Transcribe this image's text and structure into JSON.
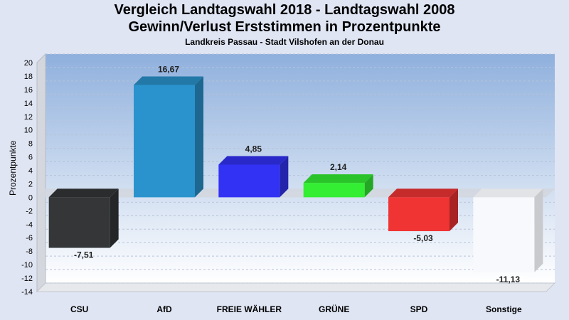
{
  "chart_data": {
    "type": "bar",
    "title": "Vergleich Landtagswahl 2018 - Landtagswahl 2008",
    "subtitle_line2": "Gewinn/Verlust Erststimmen in Prozentpunkte",
    "subtitle": "Landkreis Passau - Stadt Vilshofen an der Donau",
    "xlabel": "",
    "ylabel": "Prozentpunkte",
    "ylim": [
      -14,
      20
    ],
    "yticks": [
      20,
      18,
      16,
      14,
      12,
      10,
      8,
      6,
      4,
      2,
      0,
      -2,
      -4,
      -6,
      -8,
      -10,
      -12,
      -14
    ],
    "grid": true,
    "categories": [
      "CSU",
      "AfD",
      "FREIE WÄHLER",
      "GRÜNE",
      "SPD",
      "Sonstige"
    ],
    "values": [
      -7.51,
      16.67,
      4.85,
      2.14,
      -5.03,
      -11.13
    ],
    "value_labels": [
      "-7,51",
      "16,67",
      "4,85",
      "2,14",
      "-5,03",
      "-11,13"
    ],
    "colors": [
      "#343638",
      "#2a93cd",
      "#3232f5",
      "#33ee33",
      "#f03434",
      "#f8f9fc"
    ],
    "background_top": "#8fb0dd",
    "background_bottom": "#ffffff"
  }
}
